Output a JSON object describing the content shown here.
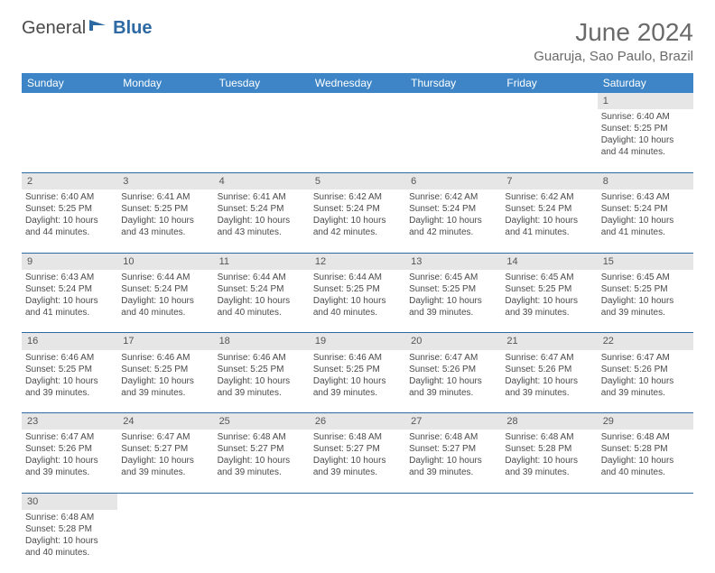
{
  "logo": {
    "text1": "General",
    "text2": "Blue"
  },
  "title": "June 2024",
  "location": "Guaruja, Sao Paulo, Brazil",
  "colors": {
    "header_bg": "#3d85c6",
    "header_text": "#ffffff",
    "daynum_bg": "#e6e6e6",
    "border": "#2d6aa3",
    "text": "#4a4a4a",
    "title": "#6a6a6a"
  },
  "weekdays": [
    "Sunday",
    "Monday",
    "Tuesday",
    "Wednesday",
    "Thursday",
    "Friday",
    "Saturday"
  ],
  "weeks": [
    [
      null,
      null,
      null,
      null,
      null,
      null,
      {
        "n": "1",
        "r": "6:40 AM",
        "s": "5:25 PM",
        "d": "10 hours and 44 minutes."
      }
    ],
    [
      {
        "n": "2",
        "r": "6:40 AM",
        "s": "5:25 PM",
        "d": "10 hours and 44 minutes."
      },
      {
        "n": "3",
        "r": "6:41 AM",
        "s": "5:25 PM",
        "d": "10 hours and 43 minutes."
      },
      {
        "n": "4",
        "r": "6:41 AM",
        "s": "5:24 PM",
        "d": "10 hours and 43 minutes."
      },
      {
        "n": "5",
        "r": "6:42 AM",
        "s": "5:24 PM",
        "d": "10 hours and 42 minutes."
      },
      {
        "n": "6",
        "r": "6:42 AM",
        "s": "5:24 PM",
        "d": "10 hours and 42 minutes."
      },
      {
        "n": "7",
        "r": "6:42 AM",
        "s": "5:24 PM",
        "d": "10 hours and 41 minutes."
      },
      {
        "n": "8",
        "r": "6:43 AM",
        "s": "5:24 PM",
        "d": "10 hours and 41 minutes."
      }
    ],
    [
      {
        "n": "9",
        "r": "6:43 AM",
        "s": "5:24 PM",
        "d": "10 hours and 41 minutes."
      },
      {
        "n": "10",
        "r": "6:44 AM",
        "s": "5:24 PM",
        "d": "10 hours and 40 minutes."
      },
      {
        "n": "11",
        "r": "6:44 AM",
        "s": "5:24 PM",
        "d": "10 hours and 40 minutes."
      },
      {
        "n": "12",
        "r": "6:44 AM",
        "s": "5:25 PM",
        "d": "10 hours and 40 minutes."
      },
      {
        "n": "13",
        "r": "6:45 AM",
        "s": "5:25 PM",
        "d": "10 hours and 39 minutes."
      },
      {
        "n": "14",
        "r": "6:45 AM",
        "s": "5:25 PM",
        "d": "10 hours and 39 minutes."
      },
      {
        "n": "15",
        "r": "6:45 AM",
        "s": "5:25 PM",
        "d": "10 hours and 39 minutes."
      }
    ],
    [
      {
        "n": "16",
        "r": "6:46 AM",
        "s": "5:25 PM",
        "d": "10 hours and 39 minutes."
      },
      {
        "n": "17",
        "r": "6:46 AM",
        "s": "5:25 PM",
        "d": "10 hours and 39 minutes."
      },
      {
        "n": "18",
        "r": "6:46 AM",
        "s": "5:25 PM",
        "d": "10 hours and 39 minutes."
      },
      {
        "n": "19",
        "r": "6:46 AM",
        "s": "5:25 PM",
        "d": "10 hours and 39 minutes."
      },
      {
        "n": "20",
        "r": "6:47 AM",
        "s": "5:26 PM",
        "d": "10 hours and 39 minutes."
      },
      {
        "n": "21",
        "r": "6:47 AM",
        "s": "5:26 PM",
        "d": "10 hours and 39 minutes."
      },
      {
        "n": "22",
        "r": "6:47 AM",
        "s": "5:26 PM",
        "d": "10 hours and 39 minutes."
      }
    ],
    [
      {
        "n": "23",
        "r": "6:47 AM",
        "s": "5:26 PM",
        "d": "10 hours and 39 minutes."
      },
      {
        "n": "24",
        "r": "6:47 AM",
        "s": "5:27 PM",
        "d": "10 hours and 39 minutes."
      },
      {
        "n": "25",
        "r": "6:48 AM",
        "s": "5:27 PM",
        "d": "10 hours and 39 minutes."
      },
      {
        "n": "26",
        "r": "6:48 AM",
        "s": "5:27 PM",
        "d": "10 hours and 39 minutes."
      },
      {
        "n": "27",
        "r": "6:48 AM",
        "s": "5:27 PM",
        "d": "10 hours and 39 minutes."
      },
      {
        "n": "28",
        "r": "6:48 AM",
        "s": "5:28 PM",
        "d": "10 hours and 39 minutes."
      },
      {
        "n": "29",
        "r": "6:48 AM",
        "s": "5:28 PM",
        "d": "10 hours and 40 minutes."
      }
    ],
    [
      {
        "n": "30",
        "r": "6:48 AM",
        "s": "5:28 PM",
        "d": "10 hours and 40 minutes."
      },
      null,
      null,
      null,
      null,
      null,
      null
    ]
  ],
  "labels": {
    "sunrise": "Sunrise:",
    "sunset": "Sunset:",
    "daylight": "Daylight:"
  }
}
